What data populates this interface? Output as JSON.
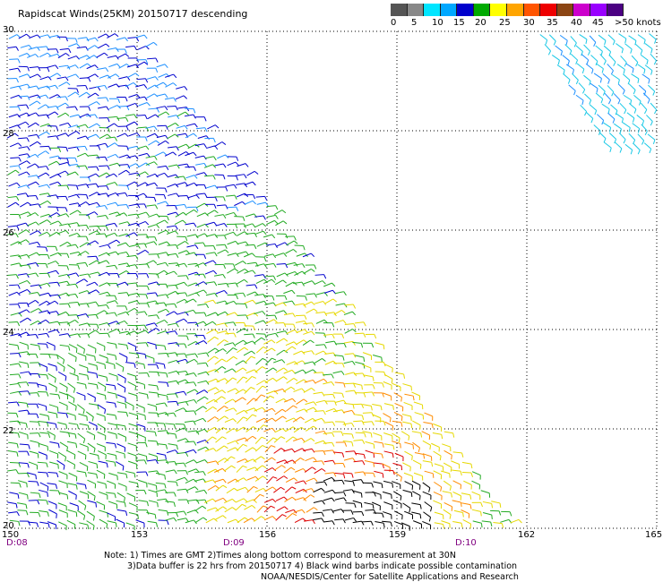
{
  "title": "Rapidscat Winds(25KM) 20150717 descending",
  "scale": {
    "labels": [
      "0",
      "5",
      "10",
      "15",
      "20",
      "25",
      "30",
      "35",
      "40",
      "45",
      ">50 knots"
    ],
    "colors": [
      "#555555",
      "#888888",
      "#00e5ff",
      "#00a8ff",
      "#0000cc",
      "#00aa00",
      "#ffff00",
      "#ffa500",
      "#ff5500",
      "#ee0000",
      "#8b4513",
      "#cc00cc",
      "#9900ff",
      "#4b0082"
    ]
  },
  "lat_labels": [
    "30",
    "28",
    "26",
    "24",
    "22",
    "20"
  ],
  "lon_labels": [
    "150",
    "153",
    "156",
    "159",
    "162",
    "165"
  ],
  "time_labels": [
    "D:08",
    "D:09",
    "D:10"
  ],
  "time_color": "#800080",
  "notes": {
    "line1": "Note: 1) Times are GMT 2)Times along bottom correspond to measurement at 30N",
    "line2": "3)Data buffer is 22 hrs from 20150717 4) Black wind barbs indicate possible contamination",
    "line3": "NOAA/NESDIS/Center for Satellite Applications and Research"
  },
  "wind_colors": {
    "cyan": "#19c8e6",
    "lightblue": "#1e90ff",
    "blue": "#0000cd",
    "green": "#22aa22",
    "yellow": "#e6d800",
    "orange": "#ff8c00",
    "red": "#dd0000",
    "contaminated": "#000000"
  }
}
